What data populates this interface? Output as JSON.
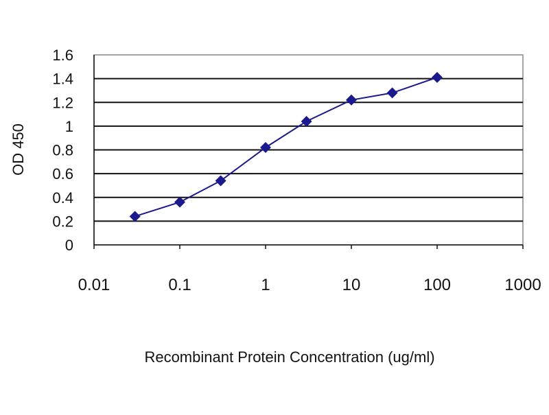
{
  "chart_data": {
    "type": "line",
    "title": "",
    "xlabel": "Recombinant Protein Concentration (ug/ml)",
    "ylabel": "OD 450",
    "x_scale": "log",
    "xlim": [
      0.01,
      1000
    ],
    "ylim": [
      0,
      1.6
    ],
    "x_ticks": [
      "0.01",
      "0.1",
      "1",
      "10",
      "100",
      "1000"
    ],
    "y_ticks": [
      "0",
      "0.2",
      "0.4",
      "0.6",
      "0.8",
      "1",
      "1.2",
      "1.4",
      "1.6"
    ],
    "grid": "horizontal",
    "legend": "none",
    "series": [
      {
        "x": [
          0.03,
          0.1,
          0.3,
          1,
          3,
          10,
          30,
          100
        ],
        "y": [
          0.24,
          0.36,
          0.54,
          0.82,
          1.04,
          1.22,
          1.28,
          1.41
        ],
        "color": "#1a1a8c",
        "marker": "diamond"
      }
    ]
  }
}
